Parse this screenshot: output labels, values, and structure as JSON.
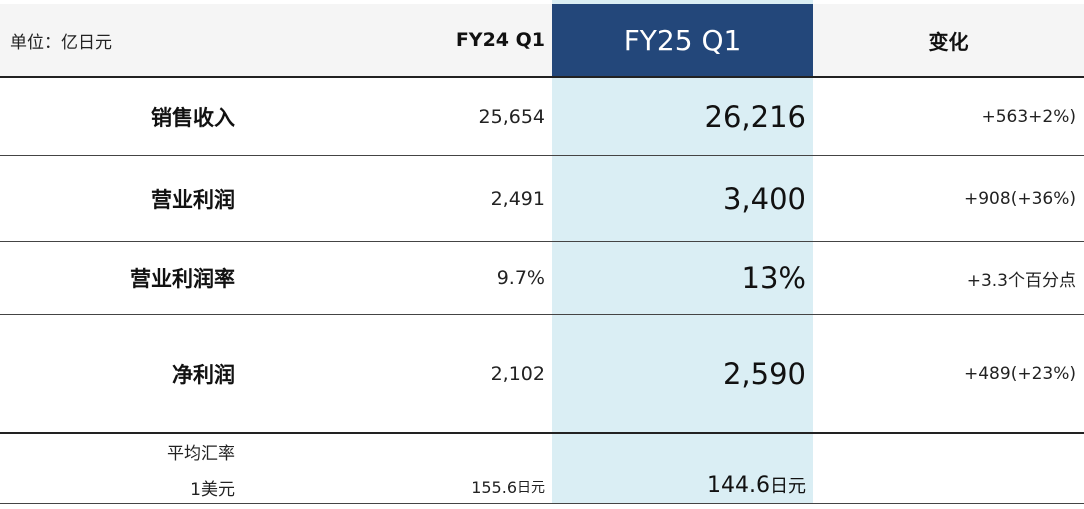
{
  "header": {
    "unit_label": "单位：亿日元",
    "fy24": "FY24 Q1",
    "fy25": "FY25 Q1",
    "change": "变化"
  },
  "rows": [
    {
      "label": "销售收入",
      "fy24": "25,654",
      "fy25": "26,216",
      "change": "+563+2%)"
    },
    {
      "label": "营业利润",
      "fy24": "2,491",
      "fy25": "3,400",
      "change": "+908(+36%)"
    },
    {
      "label": "营业利润率",
      "fy24": "9.7%",
      "fy25": "13%",
      "change": "+3.3个百分点"
    },
    {
      "label": "净利润",
      "fy24": "2,102",
      "fy25": "2,590",
      "change": "+489(+23%)"
    }
  ],
  "fx": {
    "label_line1": "平均汇率",
    "label_line2": "1美元",
    "fy24_value": "155.6",
    "fy25_value": "144.6",
    "unit": "日元"
  },
  "colors": {
    "header_highlight": "#23477a",
    "column_highlight": "#daeef4",
    "header_background": "#f5f5f5"
  }
}
